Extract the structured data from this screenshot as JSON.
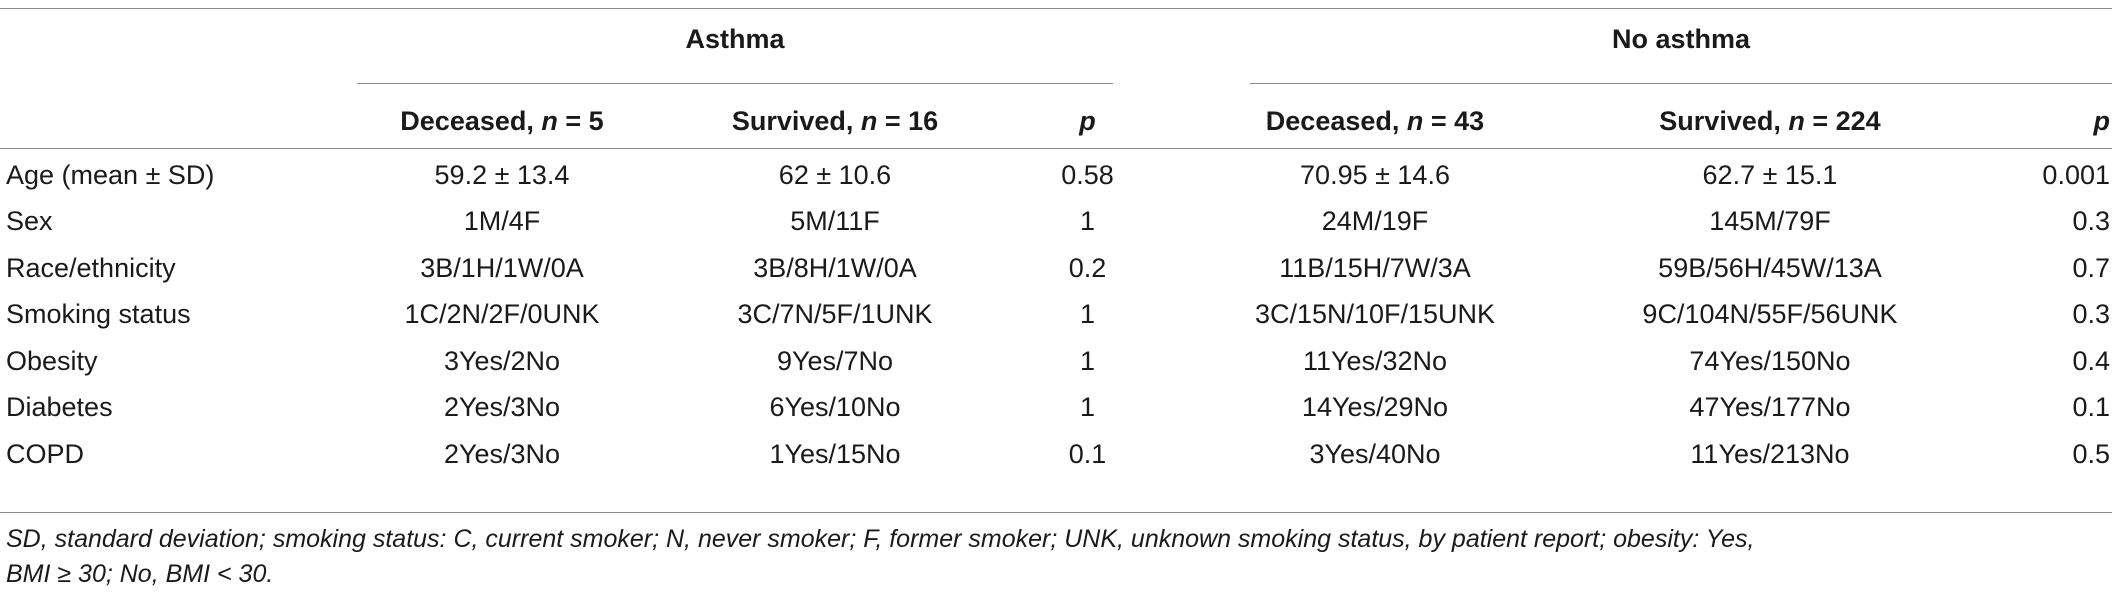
{
  "groups": {
    "asthma": "Asthma",
    "no_asthma": "No asthma"
  },
  "columns": [
    {
      "label": "Deceased, ",
      "n_label": "n",
      "n_value": " = 5"
    },
    {
      "label": "Survived, ",
      "n_label": "n",
      "n_value": " = 16"
    },
    {
      "label": "",
      "n_label": "p",
      "n_value": ""
    },
    {
      "label": "Deceased, ",
      "n_label": "n",
      "n_value": " = 43"
    },
    {
      "label": "Survived, ",
      "n_label": "n",
      "n_value": " = 224"
    },
    {
      "label": "",
      "n_label": "p",
      "n_value": ""
    }
  ],
  "rows": [
    {
      "label": "Age (mean ± SD)",
      "cells": [
        "59.2 ± 13.4",
        "62 ± 10.6",
        "0.58",
        "70.95 ± 14.6",
        "62.7 ± 15.1",
        "0.001"
      ]
    },
    {
      "label": "Sex",
      "cells": [
        "1M/4F",
        "5M/11F",
        "1",
        "24M/19F",
        "145M/79F",
        "0.3"
      ]
    },
    {
      "label": "Race/ethnicity",
      "cells": [
        "3B/1H/1W/0A",
        "3B/8H/1W/0A",
        "0.2",
        "11B/15H/7W/3A",
        "59B/56H/45W/13A",
        "0.7"
      ]
    },
    {
      "label": "Smoking status",
      "cells": [
        "1C/2N/2F/0UNK",
        "3C/7N/5F/1UNK",
        "1",
        "3C/15N/10F/15UNK",
        "9C/104N/55F/56UNK",
        "0.3"
      ]
    },
    {
      "label": "Obesity",
      "cells": [
        "3Yes/2No",
        "9Yes/7No",
        "1",
        "11Yes/32No",
        "74Yes/150No",
        "0.4"
      ]
    },
    {
      "label": "Diabetes",
      "cells": [
        "2Yes/3No",
        "6Yes/10No",
        "1",
        "14Yes/29No",
        "47Yes/177No",
        "0.1"
      ]
    },
    {
      "label": "COPD",
      "cells": [
        "2Yes/3No",
        "1Yes/15No",
        "0.1",
        "3Yes/40No",
        "11Yes/213No",
        "0.5"
      ]
    }
  ],
  "footnote": {
    "line1": "SD, standard deviation; smoking status: C, current smoker; N, never smoker; F, former smoker; UNK, unknown smoking status, by patient report; obesity: Yes,",
    "line2": "BMI ≥ 30; No, BMI < 30."
  }
}
